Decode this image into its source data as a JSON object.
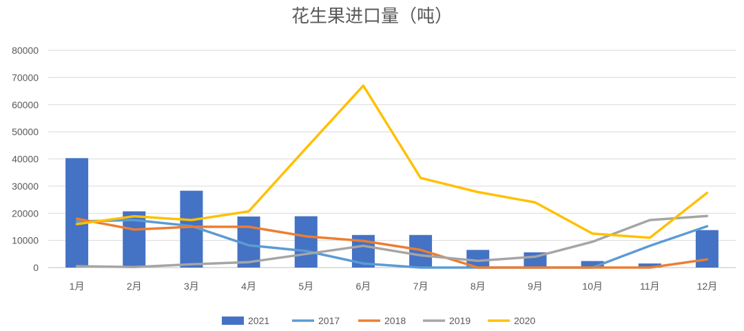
{
  "chart_data": {
    "type": "bar",
    "title": "花生果进口量（吨）",
    "xlabel": "",
    "ylabel": "",
    "ylim": [
      0,
      80000
    ],
    "yticks": [
      "0",
      "10000",
      "20000",
      "30000",
      "40000",
      "50000",
      "60000",
      "70000",
      "80000"
    ],
    "categories": [
      "1月",
      "2月",
      "3月",
      "4月",
      "5月",
      "6月",
      "7月",
      "8月",
      "9月",
      "10月",
      "11月",
      "12月"
    ],
    "grid": true,
    "legend_position": "bottom",
    "series": [
      {
        "name": "2021",
        "type": "bar",
        "color": "#4472C4",
        "values": [
          40300,
          20700,
          28300,
          18800,
          18900,
          12000,
          12000,
          6500,
          5600,
          2400,
          1500,
          13800
        ]
      },
      {
        "name": "2017",
        "type": "line",
        "color": "#5B9BD5",
        "values": [
          17000,
          17500,
          15300,
          8200,
          6100,
          1500,
          0,
          0,
          0,
          0,
          8000,
          15200
        ]
      },
      {
        "name": "2018",
        "type": "line",
        "color": "#ED7D31",
        "values": [
          18000,
          14000,
          15000,
          15000,
          11500,
          9800,
          6500,
          0,
          0,
          0,
          0,
          3000
        ]
      },
      {
        "name": "2019",
        "type": "line",
        "color": "#A5A5A5",
        "values": [
          500,
          200,
          1200,
          2000,
          5000,
          8000,
          4500,
          2500,
          4000,
          9500,
          17500,
          19000
        ]
      },
      {
        "name": "2020",
        "type": "line",
        "color": "#FFC000",
        "values": [
          16000,
          18900,
          17500,
          20700,
          44000,
          67000,
          33000,
          27800,
          24000,
          12500,
          11000,
          27500
        ]
      }
    ]
  }
}
